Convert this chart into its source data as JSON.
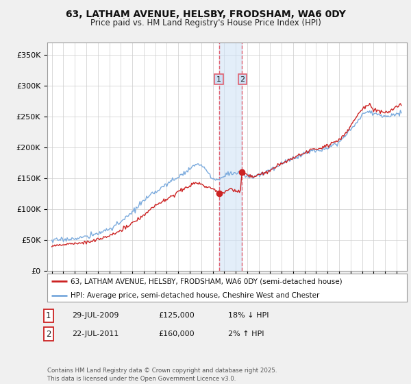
{
  "title": "63, LATHAM AVENUE, HELSBY, FRODSHAM, WA6 0DY",
  "subtitle": "Price paid vs. HM Land Registry's House Price Index (HPI)",
  "ylim": [
    0,
    370000
  ],
  "yticks": [
    0,
    50000,
    100000,
    150000,
    200000,
    250000,
    300000,
    350000
  ],
  "ytick_labels": [
    "£0",
    "£50K",
    "£100K",
    "£150K",
    "£200K",
    "£250K",
    "£300K",
    "£350K"
  ],
  "sale1_date": 2009.57,
  "sale1_price": 125000,
  "sale1_label": "1",
  "sale1_date_str": "29-JUL-2009",
  "sale1_pct": "18% ↓ HPI",
  "sale2_date": 2011.55,
  "sale2_price": 160000,
  "sale2_label": "2",
  "sale2_date_str": "22-JUL-2011",
  "sale2_pct": "2% ↑ HPI",
  "hpi_color": "#7aaadd",
  "price_color": "#cc2222",
  "marker_color": "#cc2222",
  "shade_color": "#cce0f5",
  "vline_color": "#e06070",
  "legend_line1": "63, LATHAM AVENUE, HELSBY, FRODSHAM, WA6 0DY (semi-detached house)",
  "legend_line2": "HPI: Average price, semi-detached house, Cheshire West and Chester",
  "footer": "Contains HM Land Registry data © Crown copyright and database right 2025.\nThis data is licensed under the Open Government Licence v3.0.",
  "bg_color": "#f0f0f0",
  "plot_bg": "#ffffff"
}
